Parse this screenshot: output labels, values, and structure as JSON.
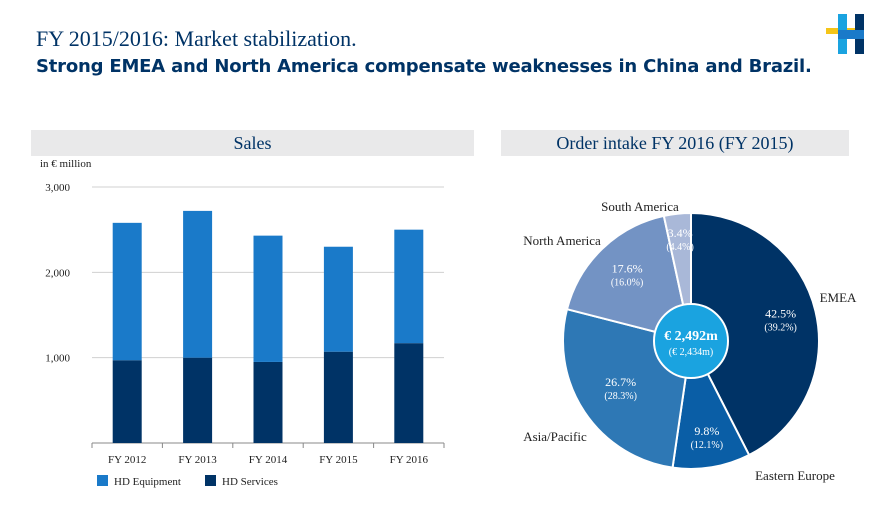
{
  "header": {
    "title": "FY 2015/2016: Market stabilization.",
    "subtitle": "Strong EMEA and North America compensate weaknesses in China and Brazil."
  },
  "colors": {
    "equipment": "#1a7ac9",
    "services": "#003366",
    "pie": {
      "EMEA": "#003366",
      "Eastern Europe": "#0a5ea6",
      "Asia/Pacific": "#2e78b5",
      "North America": "#7393c4",
      "South America": "#a9b8d8"
    },
    "center": "#1aa3e0"
  },
  "sales": {
    "panel_title": "Sales",
    "unit": "in  € million"
  },
  "orders": {
    "panel_title": "Order intake FY 2016 (FY 2015)",
    "center_value": "€ 2,492m",
    "center_prev": "(€ 2,434m)"
  },
  "chart_data": [
    {
      "type": "bar",
      "stacked": true,
      "categories": [
        "FY 2012",
        "FY 2013",
        "FY 2014",
        "FY 2015",
        "FY 2016"
      ],
      "series": [
        {
          "name": "HD Services",
          "values": [
            970,
            1000,
            950,
            1070,
            1170
          ]
        },
        {
          "name": "HD Equipment",
          "values": [
            1610,
            1720,
            1480,
            1230,
            1330
          ]
        }
      ],
      "ylim": [
        0,
        3000
      ],
      "yticks": [
        "1,000",
        "2,000",
        "3,000"
      ],
      "ytick_values": [
        1000,
        2000,
        3000
      ],
      "grid": true,
      "legend_position": "bottom-left"
    },
    {
      "type": "pie",
      "slices": [
        {
          "label": "EMEA",
          "value": 42.5,
          "text": "42.5%",
          "prev": "(39.2%)"
        },
        {
          "label": "Eastern Europe",
          "value": 9.8,
          "text": "9.8%",
          "prev": "(12.1%)"
        },
        {
          "label": "Asia/Pacific",
          "value": 26.7,
          "text": "26.7%",
          "prev": "(28.3%)"
        },
        {
          "label": "North America",
          "value": 17.6,
          "text": "17.6%",
          "prev": "(16.0%)"
        },
        {
          "label": "South America",
          "value": 3.4,
          "text": "3.4%",
          "prev": "(4.4%)"
        }
      ]
    }
  ]
}
